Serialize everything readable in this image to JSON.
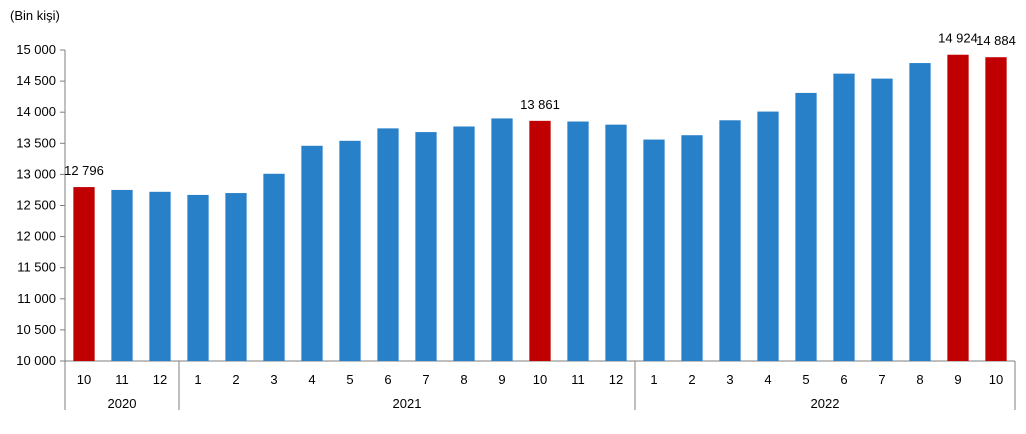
{
  "chart_data": {
    "type": "bar",
    "unit_label": "(Bin kişi)",
    "categories": [
      "10",
      "11",
      "12",
      "1",
      "2",
      "3",
      "4",
      "5",
      "6",
      "7",
      "8",
      "9",
      "10",
      "11",
      "12",
      "1",
      "2",
      "3",
      "4",
      "5",
      "6",
      "7",
      "8",
      "9",
      "10"
    ],
    "year_groups": [
      {
        "label": "2020",
        "count": 3
      },
      {
        "label": "2021",
        "count": 12
      },
      {
        "label": "2022",
        "count": 10
      }
    ],
    "values": [
      12796,
      12750,
      12720,
      12670,
      12700,
      13010,
      13460,
      13540,
      13740,
      13680,
      13770,
      13900,
      13861,
      13850,
      13800,
      13560,
      13630,
      13870,
      14010,
      14310,
      14620,
      14540,
      14790,
      14924,
      14884
    ],
    "highlight_indices": [
      0,
      12,
      23,
      24
    ],
    "data_labels": [
      {
        "index": 0,
        "text": "12 796"
      },
      {
        "index": 12,
        "text": "13 861"
      },
      {
        "index": 23,
        "text": "14 924"
      },
      {
        "index": 24,
        "text": "14 884"
      }
    ],
    "ylim": [
      10000,
      15000
    ],
    "yticks": [
      10000,
      10500,
      11000,
      11500,
      12000,
      12500,
      13000,
      13500,
      14000,
      14500,
      15000
    ],
    "ytick_labels": [
      "10 000",
      "10 500",
      "11 000",
      "11 500",
      "12 000",
      "12 500",
      "13 000",
      "13 500",
      "14 000",
      "14 500",
      "15 000"
    ],
    "colors": {
      "bar": "#2880c8",
      "highlight": "#c00000",
      "axis": "#7f7f7f"
    },
    "grid": false,
    "legend": "none"
  }
}
